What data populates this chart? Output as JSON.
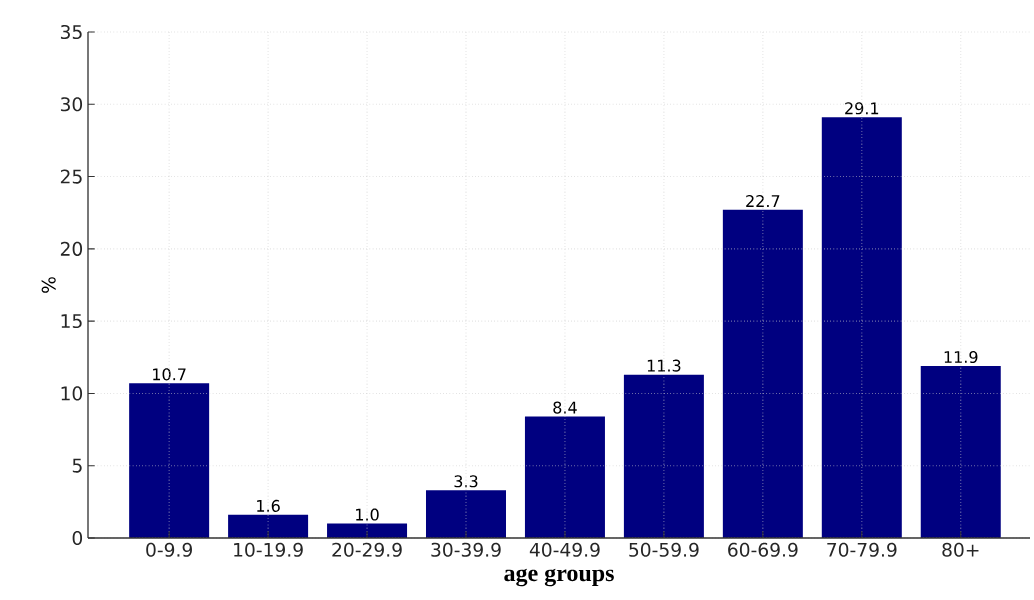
{
  "chart_data": {
    "type": "bar",
    "xlabel": "age groups",
    "ylabel": "%",
    "categories": [
      "0-9.9",
      "10-19.9",
      "20-29.9",
      "30-39.9",
      "40-49.9",
      "50-59.9",
      "60-69.9",
      "70-79.9",
      "80+"
    ],
    "values": [
      10.7,
      1.6,
      1.0,
      3.3,
      8.4,
      11.3,
      22.7,
      29.1,
      11.9
    ],
    "color": "#000080",
    "ylim": [
      0,
      35
    ],
    "yticks": [
      0,
      5,
      10,
      15,
      20,
      25,
      30,
      35
    ],
    "value_labels": [
      "10.7",
      "1.6",
      "1.0",
      "3.3",
      "8.4",
      "11.3",
      "22.7",
      "29.1",
      "11.9"
    ],
    "grid": true
  }
}
